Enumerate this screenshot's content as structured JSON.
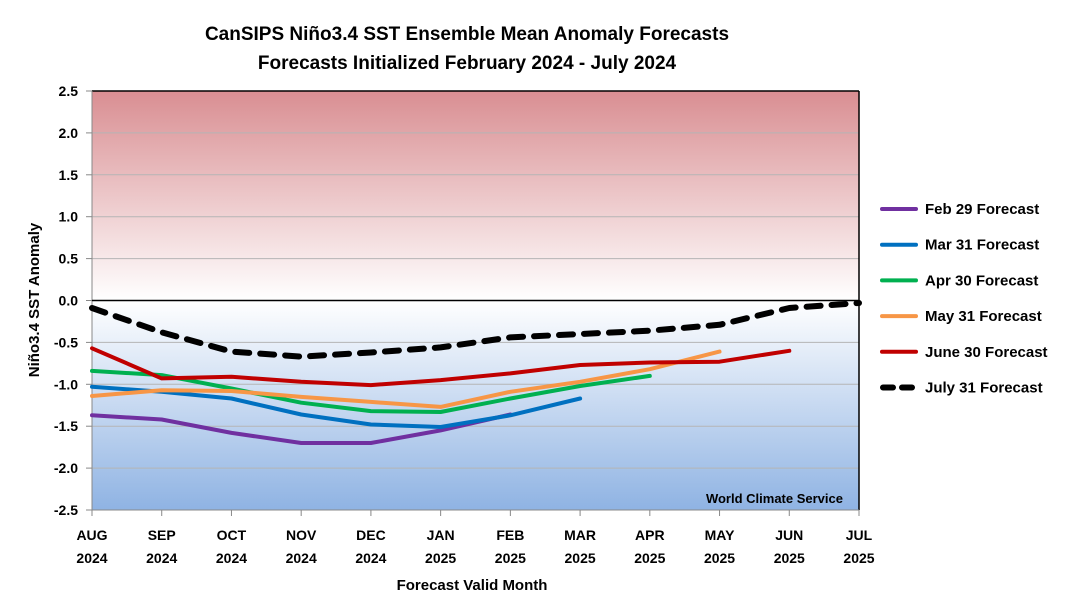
{
  "chart_data": {
    "type": "line",
    "title": "CanSIPS Niño3.4 SST Ensemble Mean Anomaly Forecasts",
    "subtitle": "Forecasts Initialized February 2024 - July 2024",
    "xlabel": "Forecast Valid Month",
    "ylabel": "Niño3.4 SST Anomaly",
    "ylim": [
      -2.5,
      2.5
    ],
    "yticks": [
      "2.5",
      "2.0",
      "1.5",
      "1.0",
      "0.5",
      "0.0",
      "-0.5",
      "-1.0",
      "-1.5",
      "-2.0",
      "-2.5"
    ],
    "ytick_values": [
      2.5,
      2.0,
      1.5,
      1.0,
      0.5,
      0.0,
      -0.5,
      -1.0,
      -1.5,
      -2.0,
      -2.5
    ],
    "categories": [
      {
        "month": "AUG",
        "year": "2024"
      },
      {
        "month": "SEP",
        "year": "2024"
      },
      {
        "month": "OCT",
        "year": "2024"
      },
      {
        "month": "NOV",
        "year": "2024"
      },
      {
        "month": "DEC",
        "year": "2024"
      },
      {
        "month": "JAN",
        "year": "2025"
      },
      {
        "month": "FEB",
        "year": "2025"
      },
      {
        "month": "MAR",
        "year": "2025"
      },
      {
        "month": "APR",
        "year": "2025"
      },
      {
        "month": "MAY",
        "year": "2025"
      },
      {
        "month": "JUN",
        "year": "2025"
      },
      {
        "month": "JUL",
        "year": "2025"
      }
    ],
    "grid": true,
    "legend_position": "right",
    "background": {
      "warm_color": "#d98e92",
      "neutral_color": "#ffffff",
      "cool_color": "#8fb3e3"
    },
    "annotation": "World Climate Service",
    "series": [
      {
        "name": "Feb 29 Forecast",
        "color": "#7030a0",
        "dashed": false,
        "values": [
          -1.37,
          -1.42,
          -1.58,
          -1.7,
          -1.7,
          -1.55,
          -1.36
        ]
      },
      {
        "name": "Mar 31 Forecast",
        "color": "#0070c0",
        "dashed": false,
        "values": [
          -1.03,
          -1.09,
          -1.17,
          -1.36,
          -1.48,
          -1.51,
          -1.37,
          -1.17
        ]
      },
      {
        "name": "Apr 30 Forecast",
        "color": "#00b050",
        "dashed": false,
        "values": [
          -0.84,
          -0.89,
          -1.05,
          -1.22,
          -1.32,
          -1.33,
          -1.17,
          -1.02,
          -0.9
        ]
      },
      {
        "name": "May 31 Forecast",
        "color": "#f79646",
        "dashed": false,
        "values": [
          -1.14,
          -1.07,
          -1.08,
          -1.15,
          -1.21,
          -1.27,
          -1.09,
          -0.97,
          -0.82,
          -0.61
        ]
      },
      {
        "name": "June 30 Forecast",
        "color": "#c00000",
        "dashed": false,
        "values": [
          -0.57,
          -0.93,
          -0.91,
          -0.97,
          -1.01,
          -0.95,
          -0.87,
          -0.77,
          -0.74,
          -0.73,
          -0.6
        ]
      },
      {
        "name": "July 31 Forecast",
        "color": "#000000",
        "dashed": true,
        "values": [
          -0.09,
          -0.38,
          -0.61,
          -0.67,
          -0.62,
          -0.56,
          -0.44,
          -0.4,
          -0.36,
          -0.29,
          -0.09,
          -0.03
        ]
      }
    ]
  }
}
